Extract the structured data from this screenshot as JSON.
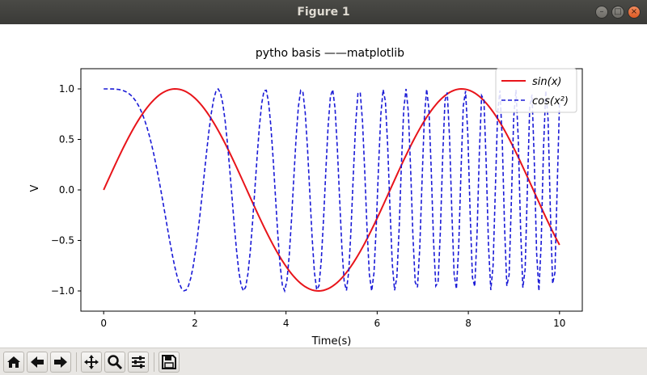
{
  "window": {
    "title": "Figure 1",
    "buttons": [
      "minimize-icon",
      "maximize-icon",
      "close-icon"
    ]
  },
  "toolbar": {
    "items": [
      "home-icon",
      "back-icon",
      "forward-icon",
      "pan-icon",
      "zoom-icon",
      "subplots-icon",
      "save-icon"
    ]
  },
  "chart_data": {
    "type": "line",
    "title": "pytho basis ——matplotlib",
    "xlabel": "Time(s)",
    "ylabel": "V",
    "xlim": [
      -0.5,
      10.5
    ],
    "ylim": [
      -1.2,
      1.2
    ],
    "xticks": [
      "0",
      "2",
      "4",
      "6",
      "8",
      "10"
    ],
    "yticks": [
      "1.0",
      "0.5",
      "0.0",
      "−0.5",
      "−1.0"
    ],
    "grid": false,
    "legend_position": "top-right",
    "x_range": [
      0,
      10
    ],
    "series": [
      {
        "name": "sin(x)",
        "function": "sin(x)",
        "color": "#e8141a",
        "style": "solid"
      },
      {
        "name": "cos(x²)",
        "function": "cos(x^2)",
        "color": "#1a1ad6",
        "style": "dashed"
      }
    ]
  }
}
